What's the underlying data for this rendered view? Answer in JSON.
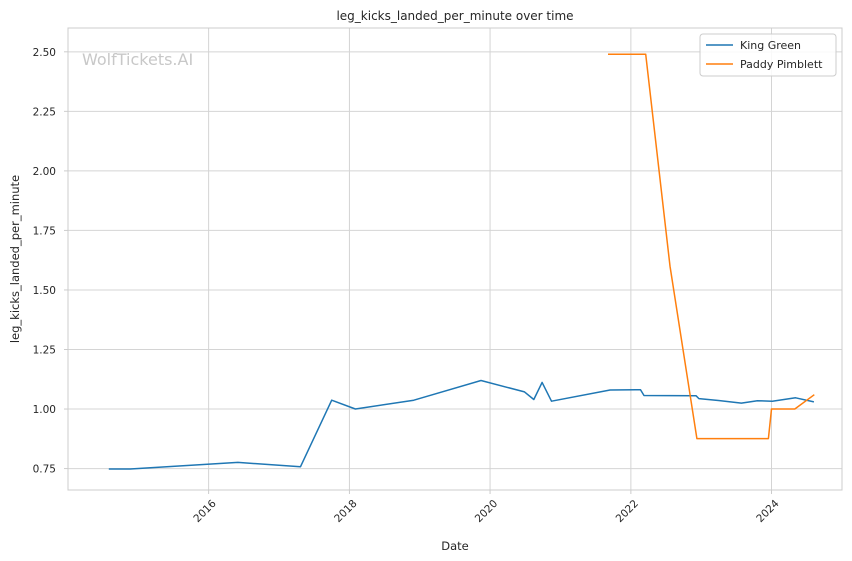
{
  "chart_data": {
    "type": "line",
    "title": "leg_kicks_landed_per_minute over time",
    "xlabel": "Date",
    "ylabel": "leg_kicks_landed_per_minute",
    "x_axis_type": "date",
    "xlim": [
      "2014-01-01",
      "2025-01-01"
    ],
    "ylim": [
      0.66,
      2.6
    ],
    "x_ticks": [
      "2016-01-01",
      "2018-01-01",
      "2020-01-01",
      "2022-01-01",
      "2024-01-01"
    ],
    "x_tick_labels": [
      "2016",
      "2018",
      "2020",
      "2022",
      "2024"
    ],
    "y_ticks": [
      0.75,
      1.0,
      1.25,
      1.5,
      1.75,
      2.0,
      2.25,
      2.5
    ],
    "y_tick_labels": [
      "0.75",
      "1.00",
      "1.25",
      "1.50",
      "1.75",
      "2.00",
      "2.25",
      "2.50"
    ],
    "grid": true,
    "legend_position": "top-right",
    "watermark": "WolfTickets.AI",
    "series": [
      {
        "name": "King Green",
        "color": "#1f77b4",
        "points": [
          [
            "2014-08-01",
            0.748
          ],
          [
            "2014-11-20",
            0.748
          ],
          [
            "2016-06-01",
            0.776
          ],
          [
            "2017-04-22",
            0.758
          ],
          [
            "2017-10-01",
            1.037
          ],
          [
            "2018-02-01",
            1.0
          ],
          [
            "2018-12-01",
            1.037
          ],
          [
            "2019-11-15",
            1.12
          ],
          [
            "2020-06-28",
            1.072
          ],
          [
            "2020-08-15",
            1.04
          ],
          [
            "2020-09-27",
            1.112
          ],
          [
            "2020-11-15",
            1.033
          ],
          [
            "2021-09-15",
            1.08
          ],
          [
            "2022-02-20",
            1.081
          ],
          [
            "2022-03-10",
            1.057
          ],
          [
            "2022-12-05",
            1.056
          ],
          [
            "2022-12-20",
            1.044
          ],
          [
            "2023-04-01",
            1.036
          ],
          [
            "2023-07-29",
            1.025
          ],
          [
            "2023-10-20",
            1.035
          ],
          [
            "2024-01-05",
            1.033
          ],
          [
            "2024-05-05",
            1.047
          ],
          [
            "2024-08-08",
            1.03
          ]
        ]
      },
      {
        "name": "Paddy Pimblett",
        "color": "#ff7f0e",
        "points": [
          [
            "2021-09-04",
            2.49
          ],
          [
            "2022-03-19",
            2.49
          ],
          [
            "2022-07-23",
            1.6
          ],
          [
            "2022-12-10",
            0.876
          ],
          [
            "2023-12-16",
            0.876
          ],
          [
            "2024-01-01",
            1.0
          ],
          [
            "2024-05-01",
            1.0
          ],
          [
            "2024-08-10",
            1.06
          ]
        ]
      }
    ]
  }
}
